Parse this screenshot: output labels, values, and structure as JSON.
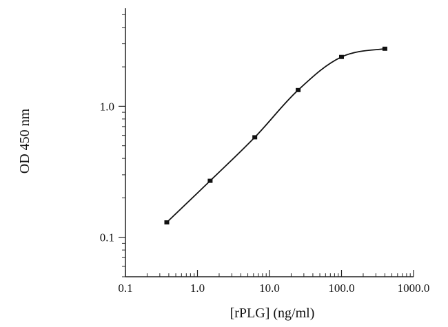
{
  "chart_data": {
    "type": "line",
    "title": "",
    "xlabel": "[rPLG] (ng/ml)",
    "ylabel": "OD 450 nm",
    "x_scale": "log",
    "y_scale": "log",
    "xlim": [
      0.1,
      1000
    ],
    "ylim": [
      0.05,
      5.6
    ],
    "x_ticks": [
      {
        "value": 0.1,
        "label": "0.1"
      },
      {
        "value": 1,
        "label": "1.0"
      },
      {
        "value": 10,
        "label": "10.0"
      },
      {
        "value": 100,
        "label": "100.0"
      },
      {
        "value": 1000,
        "label": "1000.0"
      }
    ],
    "y_ticks": [
      {
        "value": 0.1,
        "label": "0.1"
      },
      {
        "value": 1,
        "label": "1.0"
      }
    ],
    "grid": false,
    "legend": "none",
    "series": [
      {
        "x": [
          0.375,
          1.5,
          6.25,
          25,
          100,
          400
        ],
        "y": [
          0.13,
          0.27,
          0.58,
          1.33,
          2.38,
          2.75
        ]
      }
    ],
    "colors": {
      "line": "#111111",
      "marker": "#111111",
      "axis": "#222222"
    }
  }
}
